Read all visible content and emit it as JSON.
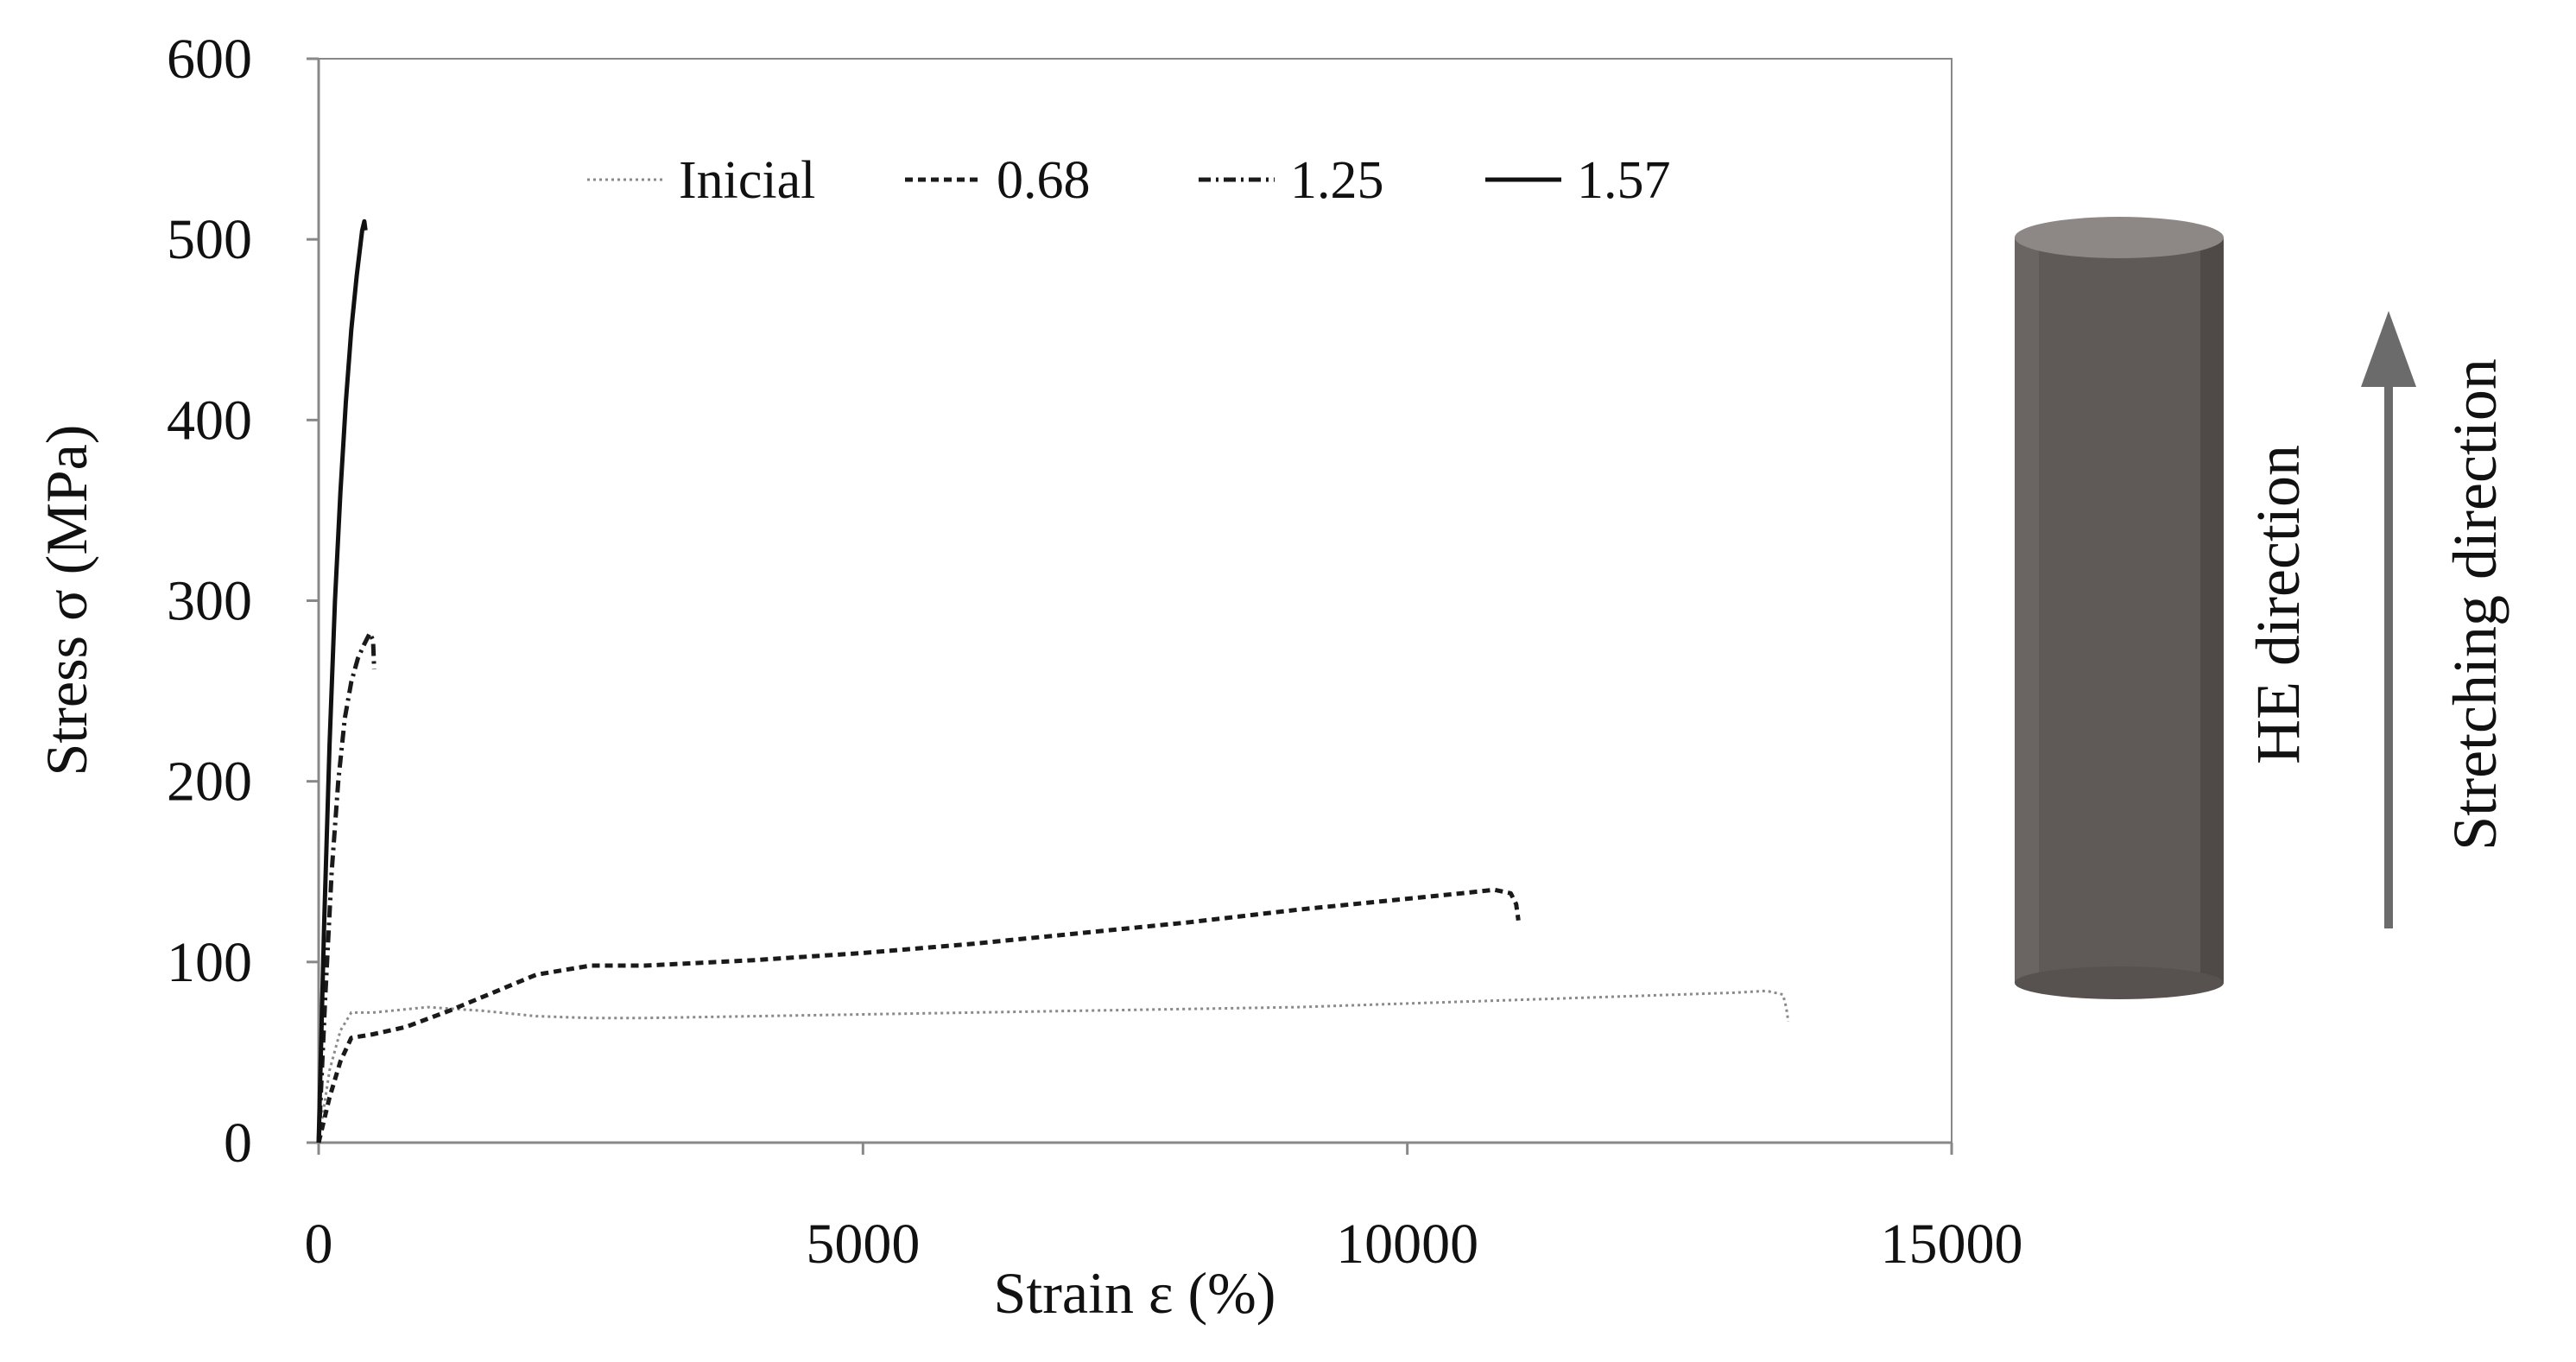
{
  "chart_data": {
    "type": "line",
    "xlabel": "Strain ε (%)",
    "ylabel": "Stress σ (MPa)",
    "xlim": [
      0,
      15000
    ],
    "ylim": [
      0,
      600
    ],
    "xticks": [
      "0",
      "5000",
      "10000",
      "15000"
    ],
    "yticks": [
      "0",
      "100",
      "200",
      "300",
      "400",
      "500",
      "600"
    ],
    "grid": false,
    "legend_position": "top",
    "series": [
      {
        "name": "Inicial",
        "style": "dotted",
        "color": "#8a8a8a",
        "x": [
          0,
          100,
          200,
          300,
          500,
          1000,
          1500,
          2000,
          2500,
          3000,
          4000,
          5000,
          6000,
          7000,
          8000,
          9000,
          10000,
          11000,
          12000,
          13000,
          13300,
          13450,
          13480,
          13500
        ],
        "y": [
          0,
          40,
          62,
          72,
          72,
          75,
          73,
          70,
          69,
          69,
          70,
          71,
          72,
          73,
          74,
          75,
          77,
          79,
          81,
          83,
          84,
          82,
          75,
          67
        ]
      },
      {
        "name": "0.68",
        "style": "dashed",
        "color": "#1a1a1a",
        "x": [
          0,
          100,
          200,
          300,
          500,
          800,
          1200,
          1600,
          2000,
          2500,
          3000,
          4000,
          5000,
          6000,
          7000,
          8000,
          9000,
          10000,
          10500,
          10800,
          10950,
          11000,
          11020
        ],
        "y": [
          0,
          25,
          45,
          58,
          60,
          64,
          73,
          83,
          93,
          98,
          98,
          101,
          105,
          110,
          116,
          122,
          129,
          135,
          138,
          140,
          138,
          132,
          123
        ]
      },
      {
        "name": "1.25",
        "style": "dashdot",
        "color": "#1a1a1a",
        "x": [
          0,
          60,
          120,
          180,
          240,
          300,
          360,
          420,
          470,
          500,
          510
        ],
        "y": [
          0,
          80,
          150,
          200,
          235,
          255,
          268,
          276,
          282,
          278,
          262
        ]
      },
      {
        "name": "1.57",
        "style": "solid",
        "color": "#111111",
        "x": [
          0,
          50,
          100,
          150,
          200,
          250,
          300,
          350,
          400,
          420,
          430
        ],
        "y": [
          0,
          120,
          220,
          300,
          360,
          410,
          450,
          480,
          505,
          510,
          505
        ]
      }
    ]
  },
  "side_annotations": {
    "cylinder_label": "HE direction",
    "arrow_label": "Stretching direction"
  }
}
